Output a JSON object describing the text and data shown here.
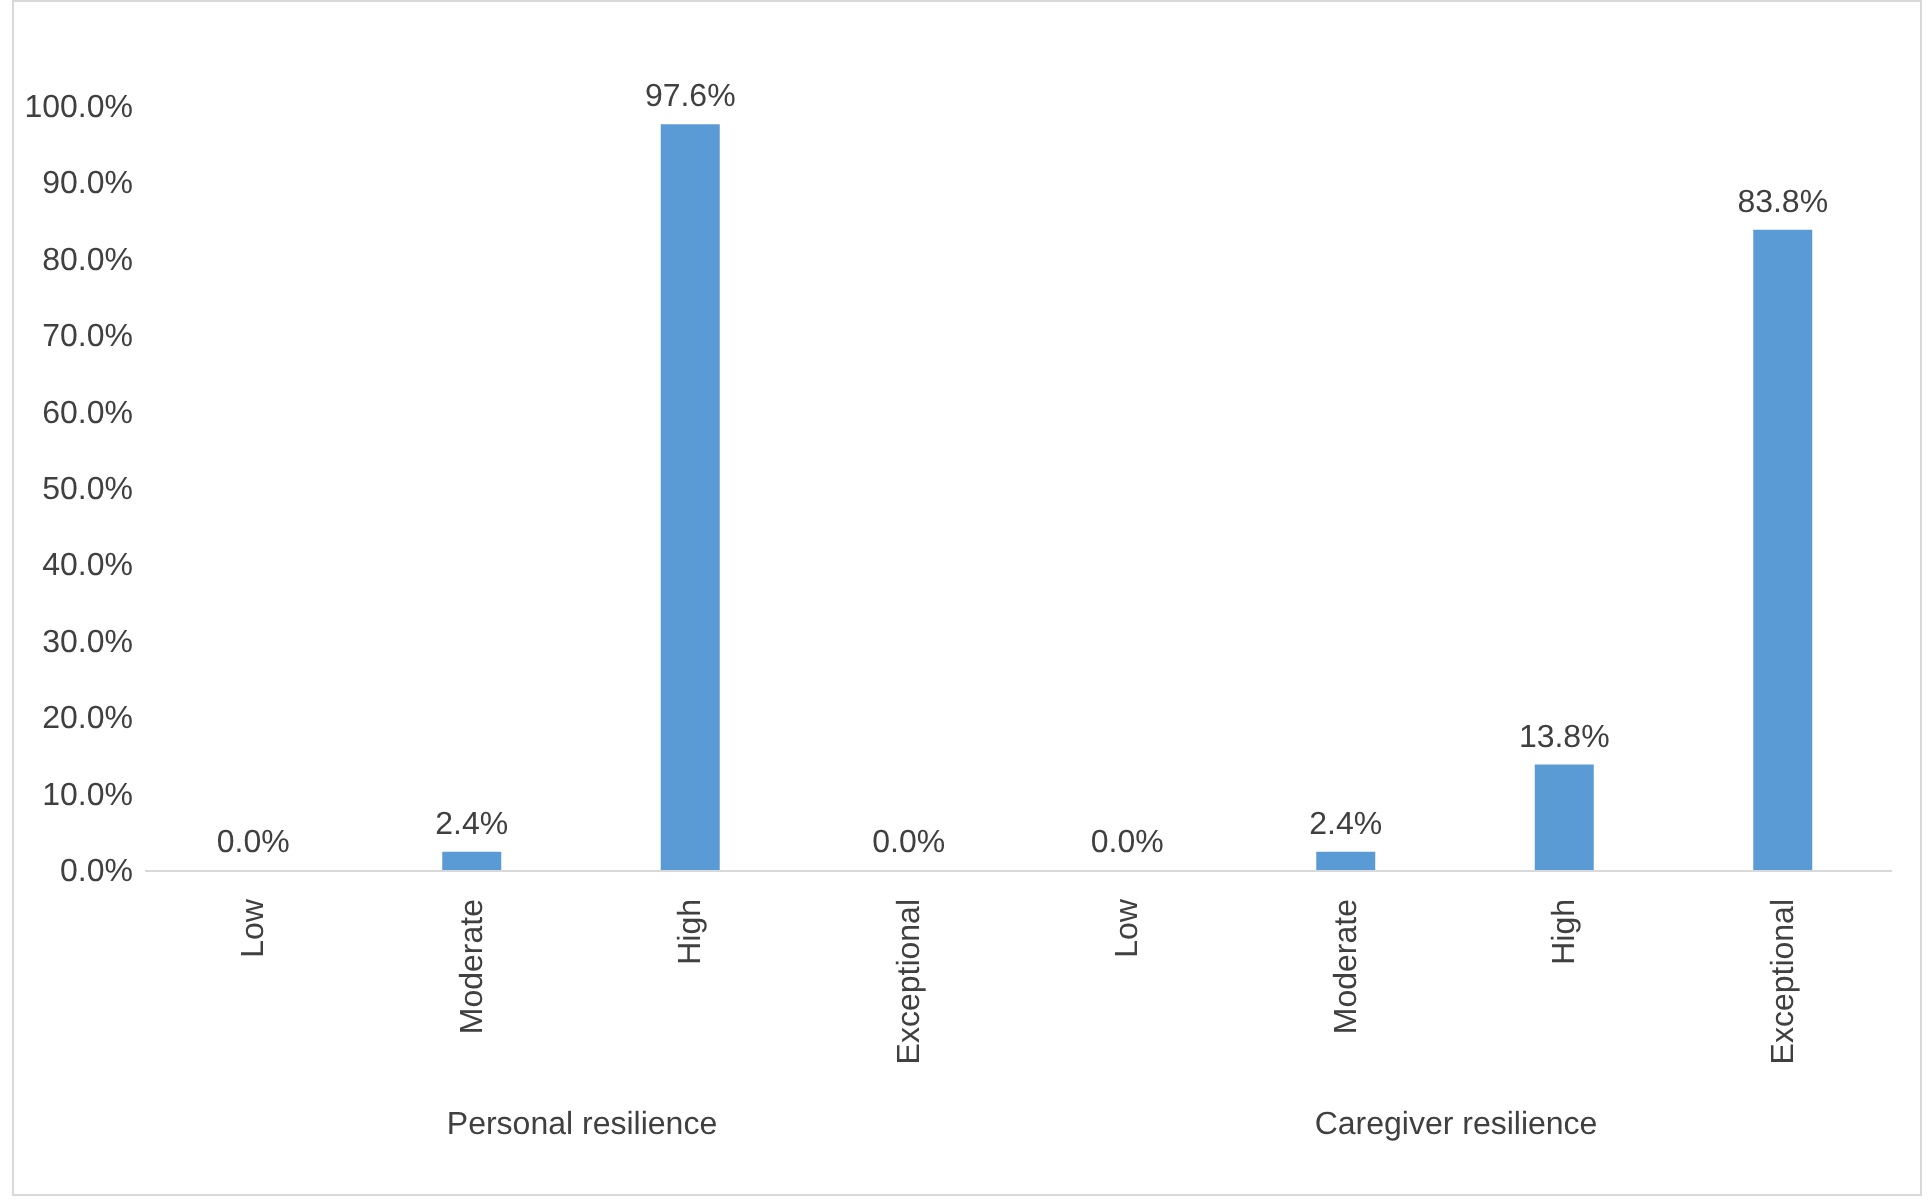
{
  "chart_data": [
    {
      "type": "bar",
      "xlabel": "Personal resilience",
      "categories": [
        "Low",
        "Moderate",
        "High",
        "Exceptional"
      ],
      "values": [
        0,
        2.4,
        97.6,
        0
      ],
      "color": "#5b9bd5",
      "value_labels": [
        "0.0%",
        "2.4%",
        "97.6%",
        "0.0%"
      ],
      "ylim": [
        0,
        100
      ],
      "yticks": [
        {
          "value": 0,
          "label": "0.0%"
        },
        {
          "value": 10,
          "label": "10.0%"
        },
        {
          "value": 20,
          "label": "20.0%"
        },
        {
          "value": 30,
          "label": "30.0%"
        },
        {
          "value": 40,
          "label": "40.0%"
        },
        {
          "value": 50,
          "label": "50.0%"
        },
        {
          "value": 60,
          "label": "60.0%"
        },
        {
          "value": 70,
          "label": "70.0%"
        },
        {
          "value": 80,
          "label": "80.0%"
        },
        {
          "value": 90,
          "label": "90.0%"
        },
        {
          "value": 100,
          "label": "100.0%"
        }
      ],
      "grid": false
    },
    {
      "type": "bar",
      "xlabel": "Caregiver resilience",
      "categories": [
        "Low",
        "Moderate",
        "High",
        "Exceptional"
      ],
      "values": [
        0,
        2.4,
        13.8,
        83.8
      ],
      "color": "#5b9bd5",
      "value_labels": [
        "0.0%",
        "2.4%",
        "13.8%",
        "83.8%"
      ],
      "ylim": [
        0,
        100
      ],
      "tick_labels": "x",
      "grid": false
    }
  ]
}
